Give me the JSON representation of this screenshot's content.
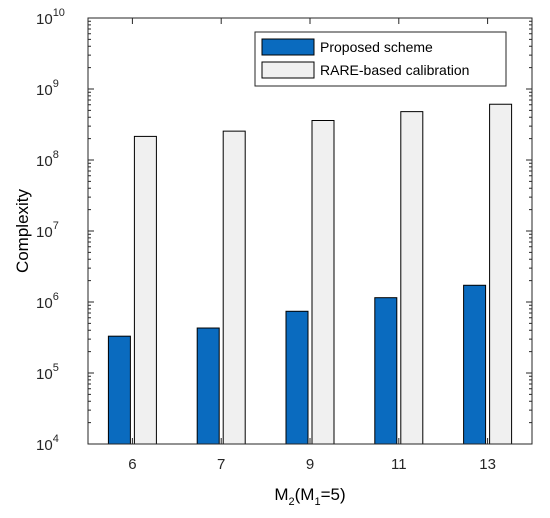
{
  "chart_data": {
    "type": "bar",
    "categories": [
      "6",
      "7",
      "9",
      "11",
      "13"
    ],
    "series": [
      {
        "name": "Proposed scheme",
        "values": [
          330000,
          430000,
          740000,
          1150000,
          1720000
        ],
        "color": "#0a6bbf"
      },
      {
        "name": "RARE-based calibration",
        "values": [
          215000000,
          255000000,
          360000000,
          480000000,
          610000000
        ],
        "color": "#f0f0f0"
      }
    ],
    "y_scale": "log",
    "ylim": [
      10000,
      10000000000
    ],
    "y_ticks": [
      {
        "base": "10",
        "exp": "4"
      },
      {
        "base": "10",
        "exp": "5"
      },
      {
        "base": "10",
        "exp": "6"
      },
      {
        "base": "10",
        "exp": "7"
      },
      {
        "base": "10",
        "exp": "8"
      },
      {
        "base": "10",
        "exp": "9"
      },
      {
        "base": "10",
        "exp": "10"
      }
    ],
    "xlabel": {
      "main": "M",
      "sub1": "2",
      "mid": "(M",
      "sub2": "1",
      "tail": "=5)"
    },
    "ylabel": "Complexity",
    "legend_position": "top-right",
    "grid": false
  }
}
